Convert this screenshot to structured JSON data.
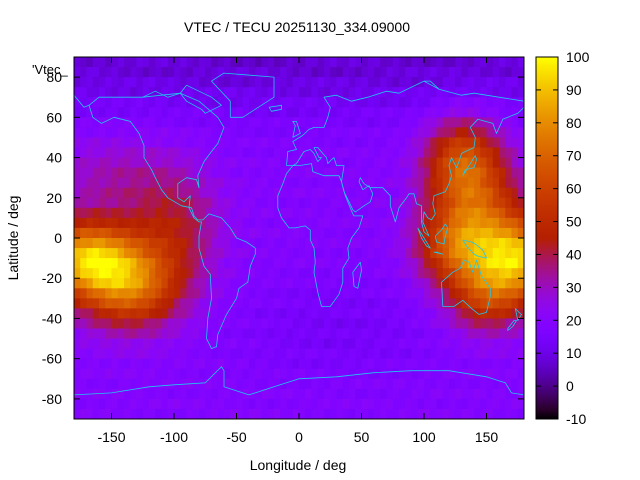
{
  "chart_data": {
    "type": "heatmap",
    "title": "VTEC / TECU 20251130_334.09000",
    "xlabel": "Longitude / deg",
    "ylabel": "Latitude / deg",
    "series_label": "'Vtec_",
    "xlim": [
      -180,
      180
    ],
    "ylim": [
      -90,
      90
    ],
    "x_ticks": [
      -150,
      -100,
      -50,
      0,
      50,
      100,
      150
    ],
    "y_ticks": [
      80,
      60,
      40,
      20,
      0,
      -20,
      -40,
      -60,
      -80
    ],
    "colorbar": {
      "min": -10,
      "max": 100,
      "ticks": [
        100,
        90,
        80,
        70,
        60,
        50,
        40,
        30,
        20,
        10,
        0,
        -10
      ],
      "palette": "gnuplot rgbformulae 7,5,15"
    },
    "overlay": "coastlines",
    "grid_resolution_deg": 5,
    "value_summary": {
      "background": 18,
      "polar_north": 5,
      "polar_south": 15,
      "peak_pacific": {
        "lon": -175,
        "lat": -10,
        "value": 88
      },
      "peak_west_pacific": {
        "lon": 175,
        "lat": -10,
        "value": 85
      }
    }
  }
}
